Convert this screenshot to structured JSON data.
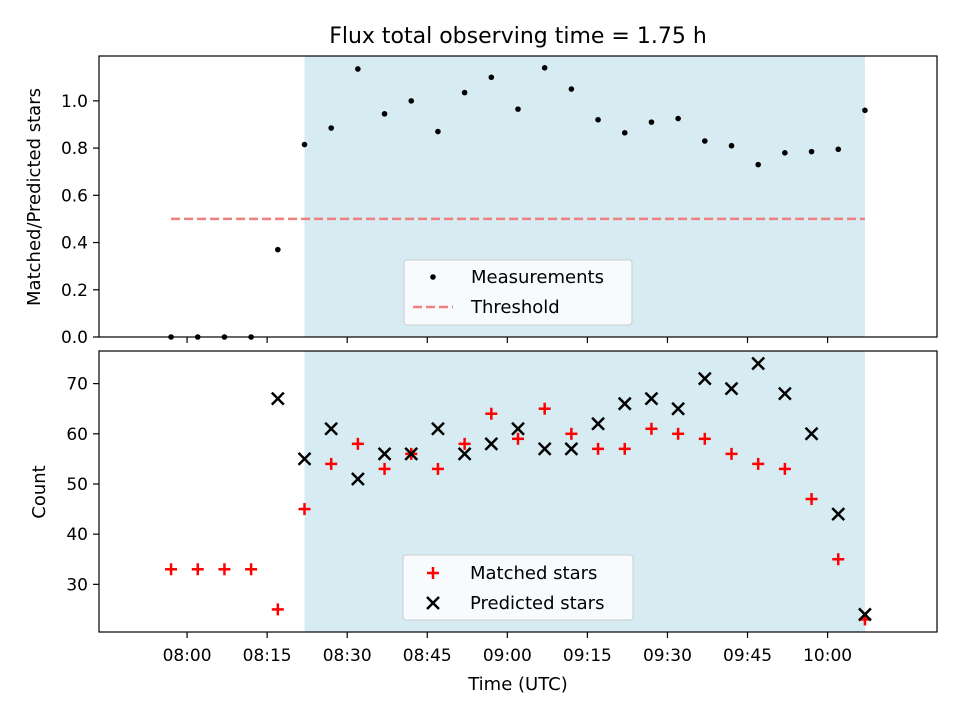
{
  "title": "Flux total observing time = 1.75 h",
  "colors": {
    "shade": "#add8e6",
    "measurement": "#000000",
    "threshold": "#f08080",
    "matched": "#ff0000",
    "predicted": "#000000"
  },
  "chart_data": [
    {
      "type": "scatter",
      "panel": "top",
      "title": "Flux total observing time = 1.75 h",
      "xlabel": "",
      "ylabel": "Matched/Predicted stars",
      "ylim": [
        0,
        1.19
      ],
      "yticks": [
        "0.0",
        "0.2",
        "0.4",
        "0.6",
        "0.8",
        "1.0"
      ],
      "grid": false,
      "legend_position": "lower-center",
      "shaded_interval": [
        "08:22",
        "10:07"
      ],
      "series": [
        {
          "name": "Measurements",
          "marker": "dot",
          "color": "#000000",
          "x": [
            "07:57",
            "08:02",
            "08:07",
            "08:12",
            "08:17",
            "08:22",
            "08:27",
            "08:32",
            "08:37",
            "08:42",
            "08:47",
            "08:52",
            "08:57",
            "09:02",
            "09:07",
            "09:12",
            "09:17",
            "09:22",
            "09:27",
            "09:32",
            "09:37",
            "09:42",
            "09:47",
            "09:52",
            "09:57",
            "10:02",
            "10:07"
          ],
          "y": [
            0.0,
            0.0,
            0.0,
            0.0,
            0.37,
            0.815,
            0.885,
            1.135,
            0.945,
            1.0,
            0.87,
            1.035,
            1.1,
            0.965,
            1.14,
            1.05,
            0.92,
            0.865,
            0.91,
            0.925,
            0.83,
            0.81,
            0.73,
            0.78,
            0.785,
            0.795,
            0.96
          ]
        },
        {
          "name": "Threshold",
          "marker": "dashed-line",
          "color": "#f08080",
          "x": [
            "07:57",
            "10:07"
          ],
          "y": [
            0.5,
            0.5
          ]
        }
      ]
    },
    {
      "type": "scatter",
      "panel": "bottom",
      "xlabel": "Time (UTC)",
      "ylabel": "Count",
      "ylim": [
        20.5,
        76.5
      ],
      "yticks": [
        "30",
        "40",
        "50",
        "60",
        "70"
      ],
      "xticks": [
        "08:00",
        "08:15",
        "08:30",
        "08:45",
        "09:00",
        "09:15",
        "09:30",
        "09:45",
        "10:00"
      ],
      "grid": false,
      "legend_position": "lower-center",
      "shaded_interval": [
        "08:22",
        "10:07"
      ],
      "series": [
        {
          "name": "Matched stars",
          "marker": "plus",
          "color": "#ff0000",
          "x": [
            "07:57",
            "08:02",
            "08:07",
            "08:12",
            "08:17",
            "08:22",
            "08:27",
            "08:32",
            "08:37",
            "08:42",
            "08:47",
            "08:52",
            "08:57",
            "09:02",
            "09:07",
            "09:12",
            "09:17",
            "09:22",
            "09:27",
            "09:32",
            "09:37",
            "09:42",
            "09:47",
            "09:52",
            "09:57",
            "10:02",
            "10:07"
          ],
          "y": [
            33,
            33,
            33,
            33,
            25,
            45,
            54,
            58,
            53,
            56,
            53,
            58,
            64,
            59,
            65,
            60,
            57,
            57,
            61,
            60,
            59,
            56,
            54,
            53,
            47,
            35,
            23
          ]
        },
        {
          "name": "Predicted stars",
          "marker": "x",
          "color": "#000000",
          "x": [
            "08:17",
            "08:22",
            "08:27",
            "08:32",
            "08:37",
            "08:42",
            "08:47",
            "08:52",
            "08:57",
            "09:02",
            "09:07",
            "09:12",
            "09:17",
            "09:22",
            "09:27",
            "09:32",
            "09:37",
            "09:42",
            "09:47",
            "09:52",
            "09:57",
            "10:02",
            "10:07"
          ],
          "y": [
            67,
            55,
            61,
            51,
            56,
            56,
            61,
            56,
            58,
            61,
            57,
            57,
            62,
            66,
            67,
            65,
            71,
            69,
            74,
            68,
            60,
            44,
            24
          ]
        }
      ]
    }
  ]
}
